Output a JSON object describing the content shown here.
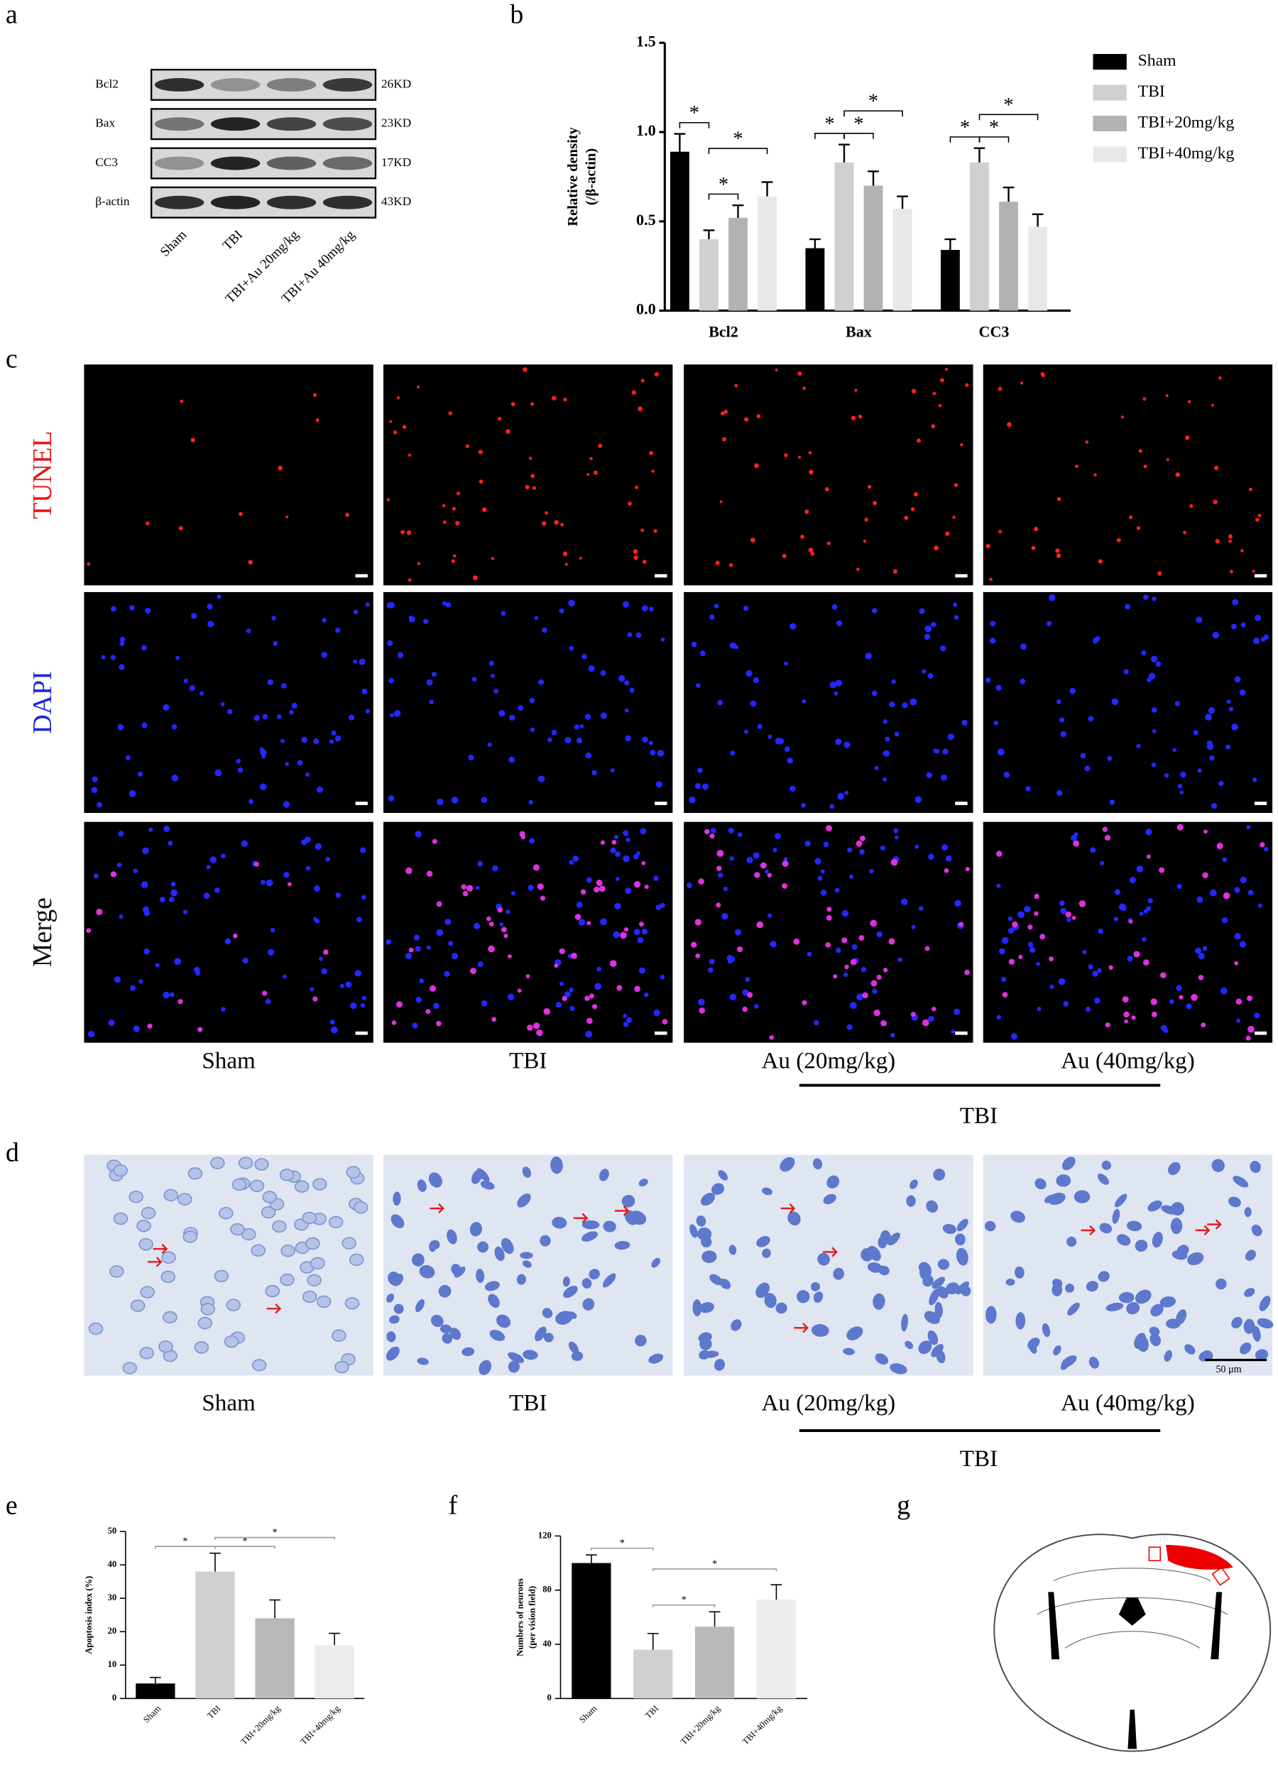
{
  "panel_labels": [
    "a",
    "b",
    "c",
    "d",
    "e",
    "f",
    "g"
  ],
  "western_blot": {
    "proteins": [
      "Bcl2",
      "Bax",
      "CC3",
      "β-actin"
    ],
    "sizes": [
      "26KD",
      "23KD",
      "17KD",
      "43KD"
    ],
    "lanes": [
      "Sham",
      "TBI",
      "TBI+Au 20mg/kg",
      "TBI+Au 40mg/kg"
    ]
  },
  "chart_data": [
    {
      "type": "bar",
      "y_label": [
        "Relative density",
        "(/β-actin)"
      ],
      "categories": [
        "Bcl2",
        "Bax",
        "CC3"
      ],
      "series": [
        {
          "name": "Sham",
          "color": "#000000",
          "values": [
            0.89,
            0.35,
            0.34
          ],
          "errors": [
            0.1,
            0.05,
            0.06
          ]
        },
        {
          "name": "TBI",
          "color": "#d0d0d0",
          "values": [
            0.4,
            0.83,
            0.83
          ],
          "errors": [
            0.05,
            0.1,
            0.08
          ]
        },
        {
          "name": "TBI+20mg/kg",
          "color": "#b2b2b2",
          "values": [
            0.52,
            0.7,
            0.61
          ],
          "errors": [
            0.07,
            0.08,
            0.08
          ]
        },
        {
          "name": "TBI+40mg/kg",
          "color": "#e8e8e8",
          "values": [
            0.64,
            0.57,
            0.47
          ],
          "errors": [
            0.08,
            0.07,
            0.07
          ]
        }
      ],
      "ylim": [
        0,
        1.5
      ],
      "yticks": [
        {
          "value": 0,
          "label": "0.0"
        },
        {
          "value": 0.5,
          "label": "0.5"
        },
        {
          "value": 1,
          "label": "1.0"
        },
        {
          "value": 1.5,
          "label": "1.5"
        }
      ],
      "significance": [
        {
          "category": "Bcl2",
          "pair": [
            "Sham",
            "TBI"
          ],
          "label": "*"
        },
        {
          "category": "Bcl2",
          "pair": [
            "TBI",
            "TBI+20mg/kg"
          ],
          "label": "*"
        },
        {
          "category": "Bcl2",
          "pair": [
            "TBI",
            "TBI+40mg/kg"
          ],
          "label": "*"
        },
        {
          "category": "Bax",
          "pair": [
            "Sham",
            "TBI"
          ],
          "label": "*"
        },
        {
          "category": "Bax",
          "pair": [
            "TBI",
            "TBI+20mg/kg"
          ],
          "label": "*"
        },
        {
          "category": "Bax",
          "pair": [
            "TBI",
            "TBI+40mg/kg"
          ],
          "label": "*"
        },
        {
          "category": "CC3",
          "pair": [
            "Sham",
            "TBI"
          ],
          "label": "*"
        },
        {
          "category": "CC3",
          "pair": [
            "TBI",
            "TBI+20mg/kg"
          ],
          "label": "*"
        },
        {
          "category": "CC3",
          "pair": [
            "TBI",
            "TBI+40mg/kg"
          ],
          "label": "*"
        }
      ]
    },
    {
      "type": "bar",
      "y_label": [
        "Apoptosis index (%)"
      ],
      "categories": [
        "Sham",
        "TBI",
        "TBI+20mg/kg",
        "TBI+40mg/kg"
      ],
      "values": [
        4.5,
        38,
        24,
        16
      ],
      "errors": [
        1.8,
        5.5,
        5.5,
        3.5
      ],
      "colors": [
        "#000000",
        "#d0d0d0",
        "#b8b8b8",
        "#ececec"
      ],
      "ylim": [
        0,
        50
      ],
      "yticks": [
        0,
        10,
        20,
        30,
        40,
        50
      ],
      "significance": [
        {
          "pair": [
            "Sham",
            "TBI"
          ],
          "label": "*"
        },
        {
          "pair": [
            "TBI",
            "TBI+20mg/kg"
          ],
          "label": "*"
        },
        {
          "pair": [
            "TBI",
            "TBI+40mg/kg"
          ],
          "label": "*"
        }
      ]
    },
    {
      "type": "bar",
      "y_label": [
        "Numbers of neurons",
        "(per vision field)"
      ],
      "categories": [
        "Sham",
        "TBI",
        "TBI+20mg/kg",
        "TBI+40mg/kg"
      ],
      "values": [
        100,
        36,
        53,
        73
      ],
      "errors": [
        6,
        12,
        11,
        11
      ],
      "colors": [
        "#000000",
        "#d0d0d0",
        "#b8b8b8",
        "#ececec"
      ],
      "ylim": [
        0,
        120
      ],
      "yticks": [
        0,
        40,
        80,
        120
      ],
      "significance": [
        {
          "pair": [
            "Sham",
            "TBI"
          ],
          "label": "*"
        },
        {
          "pair": [
            "TBI",
            "TBI+20mg/kg"
          ],
          "label": "*"
        },
        {
          "pair": [
            "TBI",
            "TBI+40mg/kg"
          ],
          "label": "*"
        }
      ]
    }
  ],
  "tunel": {
    "rows": [
      "TUNEL",
      "DAPI",
      "Merge"
    ],
    "columns": [
      "Sham",
      "TBI",
      "Au (20mg/kg)",
      "Au (40mg/kg)"
    ],
    "group_label": "TBI"
  },
  "nissl": {
    "columns": [
      "Sham",
      "TBI",
      "Au (20mg/kg)",
      "Au (40mg/kg)"
    ],
    "group_label": "TBI",
    "scale_bar": "50 μm"
  }
}
